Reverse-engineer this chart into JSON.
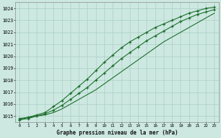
{
  "title": "Graphe pression niveau de la mer (hPa)",
  "background_color": "#cce8e0",
  "grid_color": "#aacec6",
  "line_color": "#1a6b2a",
  "ylim": [
    1014.5,
    1024.5
  ],
  "xlim": [
    -0.5,
    23.5
  ],
  "yticks": [
    1015,
    1016,
    1017,
    1018,
    1019,
    1020,
    1021,
    1022,
    1023,
    1024
  ],
  "xticks": [
    0,
    1,
    2,
    3,
    4,
    5,
    6,
    7,
    8,
    9,
    10,
    11,
    12,
    13,
    14,
    15,
    16,
    17,
    18,
    19,
    20,
    21,
    22,
    23
  ],
  "series1": [
    1014.7,
    1014.9,
    1015.0,
    1015.1,
    1015.3,
    1015.6,
    1016.0,
    1016.4,
    1016.8,
    1017.2,
    1017.7,
    1018.2,
    1018.7,
    1019.2,
    1019.7,
    1020.2,
    1020.7,
    1021.2,
    1021.6,
    1022.0,
    1022.4,
    1022.8,
    1023.2,
    1023.6
  ],
  "series2": [
    1014.7,
    1014.8,
    1015.0,
    1015.2,
    1015.5,
    1015.9,
    1016.4,
    1016.9,
    1017.4,
    1018.0,
    1018.6,
    1019.2,
    1019.8,
    1020.3,
    1020.8,
    1021.3,
    1021.7,
    1022.1,
    1022.5,
    1022.9,
    1023.2,
    1023.5,
    1023.7,
    1023.9
  ],
  "series3": [
    1014.8,
    1014.9,
    1015.1,
    1015.3,
    1015.8,
    1016.3,
    1016.9,
    1017.5,
    1018.1,
    1018.8,
    1019.5,
    1020.1,
    1020.7,
    1021.2,
    1021.6,
    1022.0,
    1022.4,
    1022.7,
    1023.0,
    1023.3,
    1023.6,
    1023.8,
    1024.0,
    1024.1
  ]
}
